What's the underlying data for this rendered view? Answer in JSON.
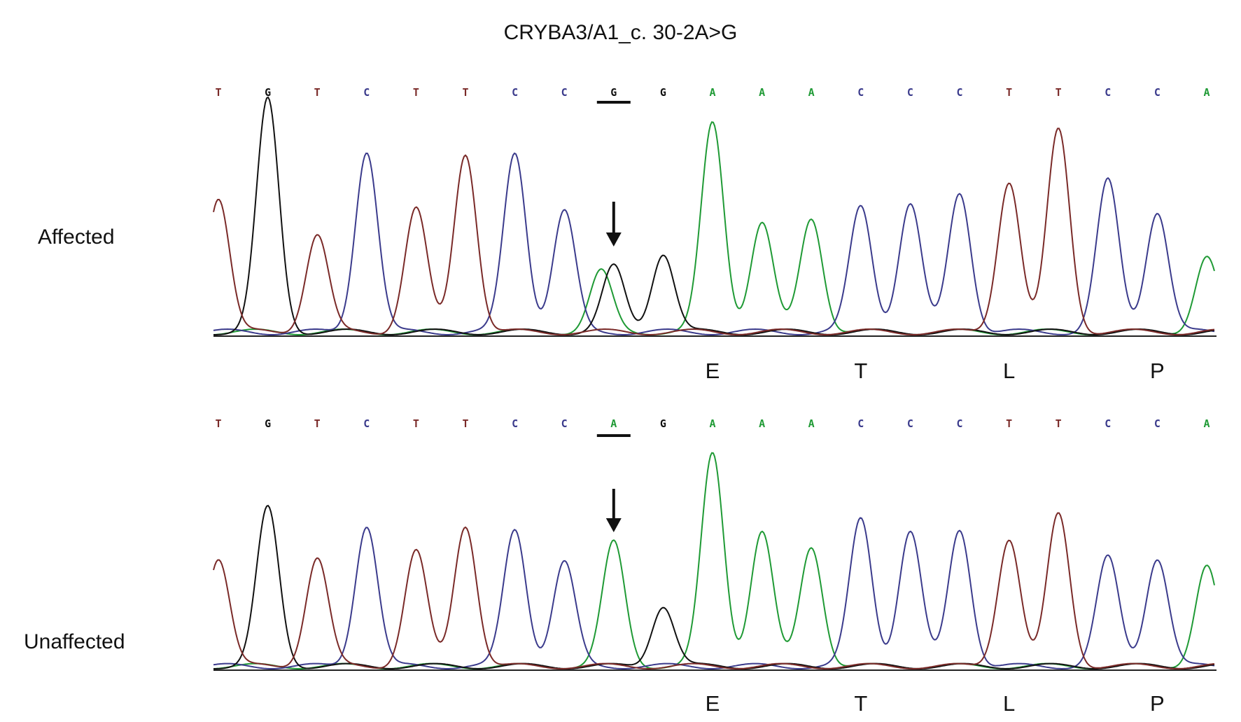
{
  "title": "CRYBA3/A1_c. 30-2A>G",
  "colors": {
    "T": "#7a2a28",
    "G": "#111111",
    "C": "#3b3b8c",
    "A": "#1f9a35",
    "noise": "#e6d94a"
  },
  "panels": [
    {
      "label": "Affected",
      "bases": [
        "T",
        "G",
        "T",
        "C",
        "T",
        "T",
        "C",
        "C",
        "G",
        "G",
        "A",
        "A",
        "A",
        "C",
        "C",
        "C",
        "T",
        "T",
        "C",
        "C",
        "A"
      ],
      "peaks": [
        0.58,
        1.0,
        0.42,
        0.78,
        0.53,
        0.77,
        0.77,
        0.52,
        0.28,
        0.34,
        0.9,
        0.47,
        0.49,
        0.54,
        0.55,
        0.6,
        0.65,
        0.87,
        0.65,
        0.52,
        0.32
      ],
      "secondary": {
        "index": 8,
        "base": "A",
        "height": 0.26
      },
      "underline_index": 8,
      "arrow_index": 8,
      "amino_acids": [
        {
          "letter": "E",
          "index": 10
        },
        {
          "letter": "T",
          "index": 13
        },
        {
          "letter": "L",
          "index": 16
        },
        {
          "letter": "P",
          "index": 19
        }
      ]
    },
    {
      "label": "Unaffected",
      "bases": [
        "T",
        "G",
        "T",
        "C",
        "T",
        "T",
        "C",
        "C",
        "A",
        "G",
        "A",
        "A",
        "A",
        "C",
        "C",
        "C",
        "T",
        "T",
        "C",
        "C",
        "A"
      ],
      "peaks": [
        0.5,
        0.73,
        0.5,
        0.65,
        0.53,
        0.65,
        0.63,
        0.48,
        0.57,
        0.28,
        0.98,
        0.62,
        0.55,
        0.68,
        0.62,
        0.63,
        0.59,
        0.7,
        0.5,
        0.5,
        0.46
      ],
      "secondary": null,
      "underline_index": 8,
      "arrow_index": 8,
      "amino_acids": [
        {
          "letter": "E",
          "index": 10
        },
        {
          "letter": "T",
          "index": 13
        },
        {
          "letter": "L",
          "index": 16
        },
        {
          "letter": "P",
          "index": 19
        }
      ]
    }
  ]
}
